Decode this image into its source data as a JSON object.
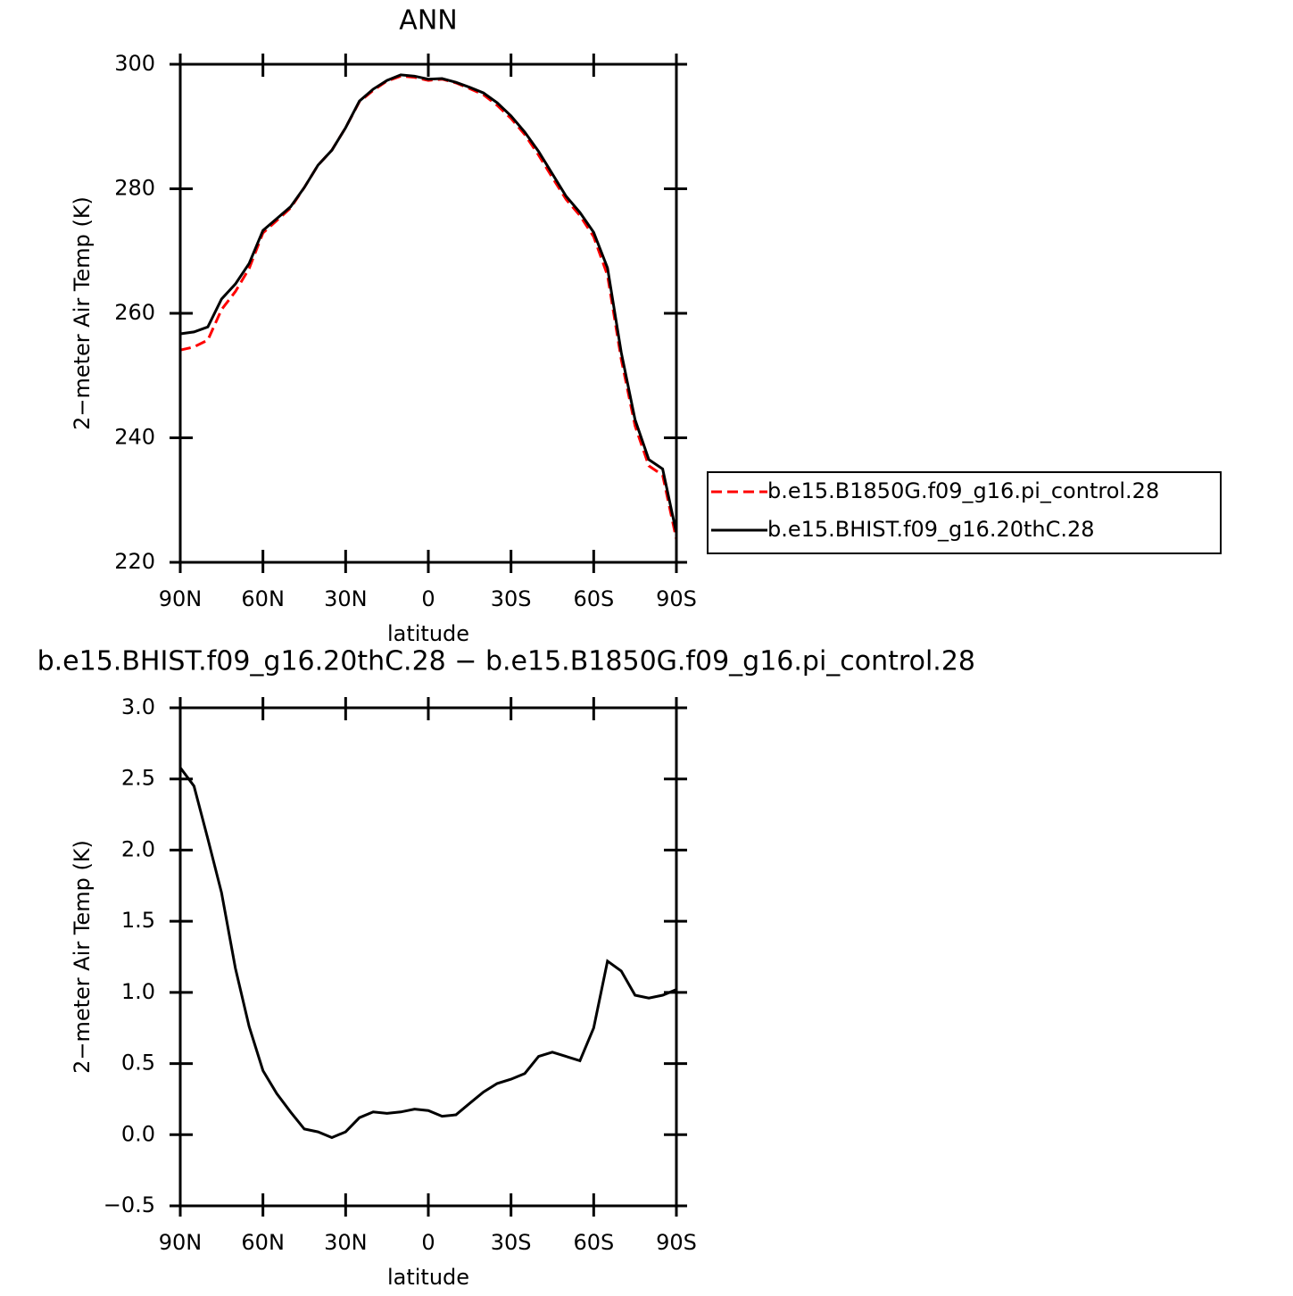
{
  "chart_data": [
    {
      "type": "line",
      "title": "ANN",
      "xlabel": "latitude",
      "ylabel": "2−meter Air Temp (K)",
      "x": [
        90,
        85,
        80,
        75,
        70,
        65,
        60,
        55,
        50,
        45,
        40,
        35,
        30,
        25,
        20,
        15,
        10,
        5,
        0,
        -5,
        -10,
        -15,
        -20,
        -25,
        -30,
        -35,
        -40,
        -45,
        -50,
        -55,
        -60,
        -65,
        -70,
        -75,
        -80,
        -85,
        -90
      ],
      "series": [
        {
          "name": "b.e15.B1850G.f09_g16.pi_control.28",
          "color": "#ff0000",
          "dashed": true,
          "values": [
            254.1,
            254.6,
            255.7,
            260.6,
            263.5,
            267.2,
            272.9,
            274.9,
            276.9,
            280.2,
            283.8,
            286.2,
            289.8,
            294.0,
            295.8,
            297.3,
            298.1,
            297.9,
            297.4,
            297.6,
            297.0,
            296.1,
            295.1,
            293.4,
            291.3,
            288.7,
            285.4,
            281.8,
            278.3,
            275.7,
            272.3,
            266.1,
            252.6,
            241.9,
            235.5,
            234.0,
            223.7
          ]
        },
        {
          "name": "b.e15.BHIST.f09_g16.20thC.28",
          "color": "#000000",
          "dashed": false,
          "values": [
            256.7,
            257.0,
            257.8,
            262.3,
            264.7,
            268.0,
            273.3,
            275.2,
            277.1,
            280.2,
            283.8,
            286.2,
            289.8,
            294.1,
            296.0,
            297.4,
            298.3,
            298.1,
            297.6,
            297.7,
            297.1,
            296.3,
            295.4,
            293.8,
            291.7,
            289.1,
            286.0,
            282.4,
            278.8,
            276.2,
            273.0,
            267.3,
            253.7,
            242.9,
            236.5,
            235.0,
            224.7
          ]
        }
      ],
      "xlim": [
        90,
        -90
      ],
      "xticks": [
        {
          "value": 90,
          "label": "90N"
        },
        {
          "value": 60,
          "label": "60N"
        },
        {
          "value": 30,
          "label": "30N"
        },
        0,
        {
          "value": -30,
          "label": "30S"
        },
        {
          "value": -60,
          "label": "60S"
        },
        {
          "value": -90,
          "label": "90S"
        }
      ],
      "ylim": [
        220,
        300
      ],
      "yticks": [
        220,
        240,
        260,
        280,
        300
      ],
      "legend": "outside-right"
    },
    {
      "type": "line",
      "title": "b.e15.BHIST.f09_g16.20thC.28 − b.e15.B1850G.f09_g16.pi_control.28",
      "xlabel": "latitude",
      "ylabel": "2−meter Air Temp (K)",
      "x": [
        90,
        85,
        80,
        75,
        70,
        65,
        60,
        55,
        50,
        45,
        40,
        35,
        30,
        25,
        20,
        15,
        10,
        5,
        0,
        -5,
        -10,
        -15,
        -20,
        -25,
        -30,
        -35,
        -40,
        -45,
        -50,
        -55,
        -60,
        -65,
        -70,
        -75,
        -80,
        -85,
        -90
      ],
      "series": [
        {
          "color": "#000000",
          "dashed": false,
          "values": [
            2.58,
            2.45,
            2.08,
            1.7,
            1.17,
            0.76,
            0.45,
            0.29,
            0.16,
            0.04,
            0.02,
            -0.02,
            0.02,
            0.12,
            0.16,
            0.15,
            0.16,
            0.18,
            0.17,
            0.13,
            0.14,
            0.22,
            0.3,
            0.36,
            0.39,
            0.43,
            0.55,
            0.58,
            0.55,
            0.52,
            0.75,
            1.22,
            1.15,
            0.98,
            0.96,
            0.98,
            1.02
          ]
        }
      ],
      "xlim": [
        90,
        -90
      ],
      "xticks": [
        {
          "value": 90,
          "label": "90N"
        },
        {
          "value": 60,
          "label": "60N"
        },
        {
          "value": 30,
          "label": "30N"
        },
        0,
        {
          "value": -30,
          "label": "30S"
        },
        {
          "value": -60,
          "label": "60S"
        },
        {
          "value": -90,
          "label": "90S"
        }
      ],
      "ylim": [
        -0.5,
        3
      ],
      "yticks": [
        {
          "value": -0.5,
          "label": "−0.5"
        },
        {
          "value": 0,
          "label": "0.0"
        },
        {
          "value": 0.5,
          "label": "0.5"
        },
        {
          "value": 1,
          "label": "1.0"
        },
        {
          "value": 1.5,
          "label": "1.5"
        },
        {
          "value": 2,
          "label": "2.0"
        },
        {
          "value": 2.5,
          "label": "2.5"
        },
        {
          "value": 3,
          "label": "3.0"
        }
      ]
    }
  ]
}
